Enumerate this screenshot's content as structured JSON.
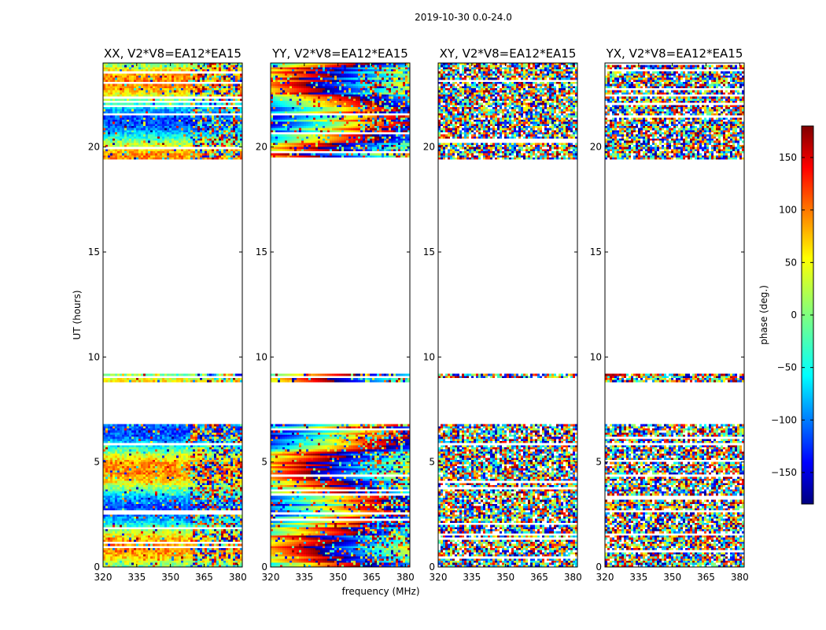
{
  "chart_data": {
    "type": "heatmap",
    "title": "2019-10-30 0.0-24.0",
    "xlabel": "frequency (MHz)",
    "ylabel": "UT (hours)",
    "xlim": [
      320,
      382
    ],
    "ylim": [
      0,
      24
    ],
    "xticks": [
      320,
      335,
      350,
      365,
      380
    ],
    "yticks": [
      0,
      5,
      10,
      15,
      20
    ],
    "colorbar": {
      "label": "phase (deg.)",
      "range": [
        -180,
        180
      ],
      "ticks": [
        150,
        100,
        50,
        0,
        -50,
        -100,
        -150
      ],
      "tick_labels": [
        "150",
        "100",
        "50",
        "0",
        "−50",
        "−100",
        "−150"
      ],
      "colormap": "jet"
    },
    "observed_time_ranges": [
      [
        0.0,
        6.8
      ],
      [
        8.8,
        9.2
      ],
      [
        19.4,
        24.0
      ]
    ],
    "panels": [
      {
        "name": "XX",
        "title": "XX, V2*V8=EA12*EA15",
        "pattern": "smooth_parallel"
      },
      {
        "name": "YY",
        "title": "YY, V2*V8=EA12*EA15",
        "pattern": "smooth_parallel_ramp"
      },
      {
        "name": "XY",
        "title": "XY, V2*V8=EA12*EA15",
        "pattern": "noise"
      },
      {
        "name": "YX",
        "title": "YX, V2*V8=EA12*EA15",
        "pattern": "noise"
      }
    ]
  }
}
